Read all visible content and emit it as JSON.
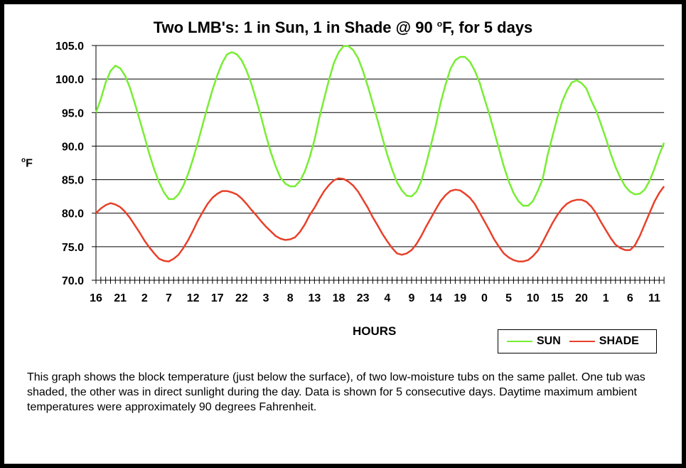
{
  "chart_data": {
    "type": "line",
    "title": "Two LMB's: 1 in Sun, 1 in Shade @ 90 oF, for 5 days",
    "title_parts": {
      "before": "Two LMB's: 1 in Sun, 1 in Shade @ 90 ",
      "sup": "o",
      "after": "F, for 5 days"
    },
    "ylabel": {
      "sup": "o",
      "text": "F"
    },
    "xlabel": "HOURS",
    "ylim": [
      70,
      105
    ],
    "y_ticks": [
      "70.0",
      "75.0",
      "80.0",
      "85.0",
      "90.0",
      "95.0",
      "100.0",
      "105.0"
    ],
    "x_tick_labels": [
      "16",
      "21",
      "2",
      "7",
      "12",
      "17",
      "22",
      "3",
      "8",
      "13",
      "18",
      "23",
      "4",
      "9",
      "14",
      "19",
      "0",
      "5",
      "10",
      "15",
      "20",
      "1",
      "6",
      "11"
    ],
    "x_start_hour": 16,
    "x_interval_hours": 1,
    "grid": "horizontal",
    "legend_position": "bottom-right",
    "series": [
      {
        "name": "SUN",
        "color": "#77ee33",
        "values": [
          95,
          97,
          99.5,
          101.2,
          102,
          101.6,
          100.5,
          98.7,
          96.4,
          93.9,
          91.4,
          88.8,
          86.5,
          84.6,
          83.1,
          82.1,
          82.1,
          82.8,
          84.1,
          85.9,
          88.1,
          90.6,
          93.3,
          95.9,
          98.4,
          100.6,
          102.4,
          103.7,
          104,
          103.7,
          102.8,
          101.3,
          99.3,
          96.9,
          94.4,
          91.6,
          89.1,
          87,
          85.3,
          84.4,
          84,
          84,
          84.8,
          86.2,
          88.3,
          90.9,
          94.2,
          97.1,
          99.9,
          102.4,
          104,
          104.9,
          104.9,
          104.3,
          103.1,
          101.2,
          98.9,
          96.4,
          93.9,
          91.2,
          88.7,
          86.5,
          84.6,
          83.4,
          82.6,
          82.5,
          83.2,
          84.8,
          87.3,
          90.2,
          93.1,
          96.5,
          99.2,
          101.5,
          102.8,
          103.3,
          103.3,
          102.6,
          101.3,
          99.5,
          97.1,
          94.8,
          92.2,
          89.6,
          87,
          84.8,
          83,
          81.8,
          81.1,
          81.1,
          81.8,
          83.3,
          85.1,
          88.6,
          91.4,
          94.2,
          96.6,
          98.3,
          99.5,
          99.8,
          99.4,
          98.6,
          96.8,
          95.3,
          93.3,
          91.2,
          88.9,
          86.9,
          85.3,
          84,
          83.2,
          82.8,
          82.9,
          83.5,
          84.8,
          86.6,
          88.7,
          90.5
        ]
      },
      {
        "name": "SHADE",
        "color": "#e8402a",
        "values": [
          80,
          80.7,
          81.2,
          81.5,
          81.3,
          80.9,
          80.2,
          79.3,
          78.2,
          77.1,
          75.9,
          74.9,
          74,
          73.2,
          72.9,
          72.8,
          73.2,
          73.8,
          74.8,
          76,
          77.4,
          78.9,
          80.2,
          81.4,
          82.3,
          82.9,
          83.3,
          83.3,
          83.1,
          82.8,
          82.2,
          81.4,
          80.5,
          79.7,
          78.8,
          78,
          77.3,
          76.6,
          76.2,
          76,
          76.1,
          76.4,
          77.2,
          78.3,
          79.7,
          80.8,
          82.1,
          83.3,
          84.2,
          84.9,
          85.2,
          85.1,
          84.7,
          84.1,
          83.2,
          82,
          80.8,
          79.4,
          78.2,
          76.9,
          75.8,
          74.8,
          74,
          73.8,
          74,
          74.5,
          75.4,
          76.6,
          78,
          79.3,
          80.6,
          81.8,
          82.7,
          83.3,
          83.5,
          83.4,
          82.9,
          82.3,
          81.4,
          80.1,
          78.8,
          77.5,
          76.1,
          75,
          74,
          73.4,
          73,
          72.8,
          72.8,
          73,
          73.6,
          74.4,
          75.7,
          77.1,
          78.5,
          79.7,
          80.7,
          81.4,
          81.8,
          82,
          82,
          81.7,
          81,
          80,
          78.7,
          77.5,
          76.3,
          75.3,
          74.8,
          74.5,
          74.5,
          75.2,
          76.6,
          78.3,
          80,
          81.7,
          83,
          84
        ]
      }
    ]
  },
  "caption": "This graph shows the block temperature (just below the surface), of two low-moisture tubs on the same pallet.  One tub was shaded, the other was in direct sunlight during the day.  Data is shown for 5 consecutive days.  Daytime maximum ambient temperatures were approximately 90 degrees Fahrenheit."
}
